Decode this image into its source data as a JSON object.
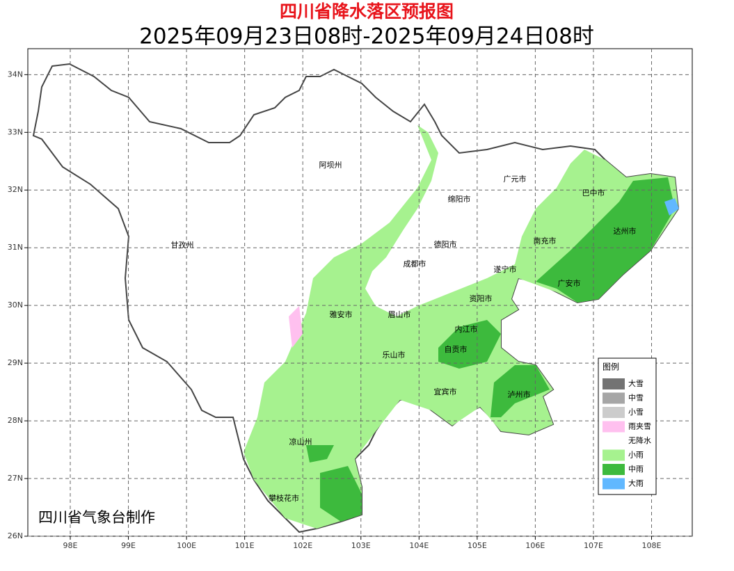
{
  "title": "四川省降水落区预报图",
  "subtitle": "2025年09月23日08时-2025年09月24日08时",
  "credit": "四川省气象台制作",
  "map": {
    "xlim": [
      97.27,
      108.7
    ],
    "ylim": [
      26,
      34.45
    ],
    "xticks": [
      {
        "value": 98,
        "label": "98E"
      },
      {
        "value": 99,
        "label": "99E"
      },
      {
        "value": 100,
        "label": "100E"
      },
      {
        "value": 101,
        "label": "101E"
      },
      {
        "value": 102,
        "label": "102E"
      },
      {
        "value": 103,
        "label": "103E"
      },
      {
        "value": 104,
        "label": "104E"
      },
      {
        "value": 105,
        "label": "105E"
      },
      {
        "value": 106,
        "label": "106E"
      },
      {
        "value": 107,
        "label": "107E"
      },
      {
        "value": 108,
        "label": "108E"
      }
    ],
    "yticks": [
      {
        "value": 26,
        "label": "26N"
      },
      {
        "value": 27,
        "label": "27N"
      },
      {
        "value": 28,
        "label": "28N"
      },
      {
        "value": 29,
        "label": "29N"
      },
      {
        "value": 30,
        "label": "30N"
      },
      {
        "value": 31,
        "label": "31N"
      },
      {
        "value": 32,
        "label": "32N"
      },
      {
        "value": 33,
        "label": "33N"
      },
      {
        "value": 34,
        "label": "34N"
      }
    ],
    "grid": true
  },
  "cities": [
    "阿坝州",
    "广元市",
    "巴中市",
    "绵阳市",
    "达州市",
    "甘孜州",
    "德阳市",
    "南充市",
    "成都市",
    "遂宁市",
    "广安市",
    "资阳市",
    "雅安市",
    "眉山市",
    "内江市",
    "自贡市",
    "乐山市",
    "宜宾市",
    "泸州市",
    "凉山州",
    "攀枝花市"
  ],
  "legend": {
    "title": "图例",
    "items": [
      {
        "label": "大雪",
        "color": "#737373"
      },
      {
        "label": "中雪",
        "color": "#a6a6a6"
      },
      {
        "label": "小雪",
        "color": "#cccccc"
      },
      {
        "label": "雨夹雪",
        "color": "#ffc0ef"
      },
      {
        "label": "无降水",
        "color": "#ffffff"
      },
      {
        "label": "小雨",
        "color": "#a6f28f"
      },
      {
        "label": "中雨",
        "color": "#3dba3d"
      },
      {
        "label": "大雨",
        "color": "#61b8ff"
      }
    ]
  }
}
